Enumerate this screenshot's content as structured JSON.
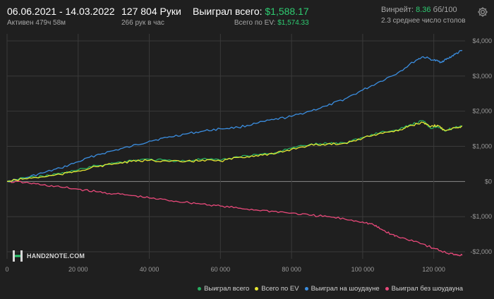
{
  "header": {
    "dates": "06.06.2021 - 14.03.2022",
    "active": "Активен 479ч 58м",
    "hands": "127 804 Руки",
    "hands_per_hour": "266 рук в час",
    "won_label": "Выиграл всего:",
    "won_value": "$1,588.17",
    "ev_label": "Всего по EV:",
    "ev_value": "$1,574.33",
    "winrate_label": "Винрейт:",
    "winrate_value": "8.36",
    "winrate_unit": "бб/100",
    "tables": "2.3 среднее число столов"
  },
  "logo": {
    "text": "HAND2NOTE.COM"
  },
  "icons": {
    "settings": "gear-icon",
    "logo": "h2n-logo-icon"
  },
  "colors": {
    "background": "#1f1f1f",
    "grid": "#3a3a3a",
    "zero_line": "#8a8a8a",
    "accent_green": "#2ecc71"
  },
  "chart_data": {
    "type": "line",
    "xlim": [
      0,
      128000
    ],
    "ylim": [
      -2200,
      4200
    ],
    "x_ticks": [
      0,
      20000,
      40000,
      60000,
      80000,
      100000,
      120000
    ],
    "x_tick_labels": [
      "0",
      "20 000",
      "40 000",
      "60 000",
      "80 000",
      "100 000",
      "120 000"
    ],
    "y_ticks": [
      4000,
      3000,
      2000,
      1000,
      0,
      -1000,
      -2000
    ],
    "y_tick_labels": [
      "$4,000",
      "$3,000",
      "$2,000",
      "$1,000",
      "$0",
      "-$1,000",
      "-$2,000"
    ],
    "grid": true,
    "legend_position": "bottom-right",
    "series": [
      {
        "name": "Выиграл на шоудауне",
        "color": "#3b8ee0",
        "x": [
          0,
          5000,
          10000,
          15000,
          20000,
          25000,
          30000,
          35000,
          40000,
          45000,
          50000,
          55000,
          60000,
          65000,
          70000,
          75000,
          80000,
          85000,
          90000,
          95000,
          100000,
          105000,
          110000,
          115000,
          117000,
          120000,
          122000,
          124000,
          126000,
          128000
        ],
        "values": [
          0,
          100,
          240,
          380,
          560,
          750,
          880,
          1000,
          1150,
          1250,
          1350,
          1430,
          1500,
          1540,
          1650,
          1760,
          1850,
          2000,
          2150,
          2350,
          2600,
          2850,
          3100,
          3450,
          3550,
          3450,
          3400,
          3500,
          3620,
          3730
        ]
      },
      {
        "name": "Выиграл без шоудауна",
        "color": "#e8497a",
        "x": [
          0,
          5000,
          10000,
          15000,
          20000,
          25000,
          30000,
          35000,
          40000,
          45000,
          50000,
          55000,
          60000,
          65000,
          70000,
          75000,
          80000,
          85000,
          90000,
          95000,
          100000,
          103000,
          105000,
          108000,
          110000,
          115000,
          120000,
          124000,
          126000,
          128000
        ],
        "values": [
          0,
          -30,
          -100,
          -160,
          -220,
          -290,
          -350,
          -400,
          -470,
          -530,
          -590,
          -640,
          -700,
          -760,
          -810,
          -850,
          -900,
          -960,
          -1000,
          -1070,
          -1150,
          -1230,
          -1350,
          -1500,
          -1580,
          -1700,
          -1900,
          -2050,
          -2070,
          -2100
        ]
      },
      {
        "name": "Выиграл всего",
        "color": "#27ae60",
        "x": [
          0,
          5000,
          10000,
          15000,
          20000,
          25000,
          30000,
          35000,
          40000,
          45000,
          50000,
          55000,
          60000,
          65000,
          70000,
          75000,
          80000,
          85000,
          90000,
          95000,
          100000,
          105000,
          110000,
          113000,
          117000,
          119000,
          121000,
          123000,
          126000,
          128000
        ],
        "values": [
          0,
          100,
          150,
          220,
          330,
          450,
          520,
          600,
          630,
          600,
          580,
          640,
          600,
          700,
          770,
          800,
          950,
          1050,
          1080,
          1100,
          1250,
          1400,
          1460,
          1600,
          1730,
          1520,
          1580,
          1440,
          1540,
          1588
        ]
      },
      {
        "name": "Всего по EV",
        "color": "#e6e632",
        "x": [
          0,
          5000,
          10000,
          15000,
          20000,
          25000,
          30000,
          35000,
          40000,
          45000,
          50000,
          55000,
          60000,
          65000,
          70000,
          75000,
          80000,
          85000,
          90000,
          95000,
          100000,
          105000,
          110000,
          113000,
          117000,
          119000,
          121000,
          123000,
          126000,
          128000
        ],
        "values": [
          0,
          80,
          130,
          200,
          300,
          420,
          500,
          570,
          600,
          580,
          560,
          610,
          580,
          680,
          740,
          780,
          920,
          1030,
          1060,
          1090,
          1230,
          1380,
          1440,
          1580,
          1680,
          1550,
          1600,
          1460,
          1530,
          1574
        ]
      }
    ],
    "legend": [
      {
        "name": "Выиграл всего",
        "color": "#27ae60"
      },
      {
        "name": "Всего по EV",
        "color": "#e6e632"
      },
      {
        "name": "Выиграл на шоудауне",
        "color": "#3b8ee0"
      },
      {
        "name": "Выиграл без шоудауна",
        "color": "#e8497a"
      }
    ]
  }
}
